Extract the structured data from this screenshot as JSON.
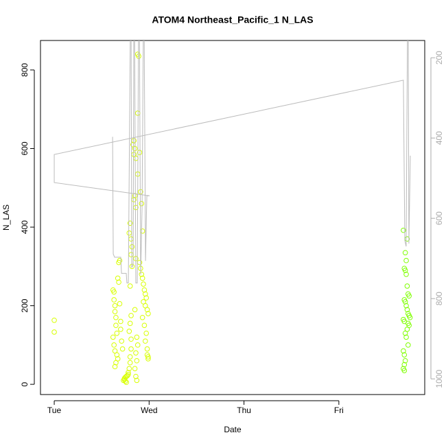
{
  "chart_data": {
    "type": "scatter",
    "title": "ATOM4 Northeast_Pacific_1 N_LAS",
    "x_label": "Date",
    "y_label": "N_LAS",
    "xlim": [
      -0.145,
      3.905
    ],
    "xticks": [
      {
        "value": 0,
        "label": "Tue"
      },
      {
        "value": 1,
        "label": "Wed"
      },
      {
        "value": 2,
        "label": "Thu"
      },
      {
        "value": 3,
        "label": "Fri"
      }
    ],
    "ylim": [
      -26,
      875
    ],
    "yticks": [
      0,
      200,
      400,
      600,
      800
    ],
    "y2lim": [
      1039,
      157
    ],
    "y2ticks": [
      200,
      400,
      600,
      800,
      1000
    ],
    "series": [
      {
        "color": "#d8ff00",
        "x": [
          0,
          0,
          0.62,
          0.63,
          0.63,
          0.64,
          0.64,
          0.65,
          0.65,
          0.66,
          0.62,
          0.63,
          0.64,
          0.66,
          0.67,
          0.65,
          0.64,
          0.67,
          0.68,
          0.68,
          0.69,
          0.69,
          0.7,
          0.7,
          0.71,
          0.72,
          0.73,
          0.74,
          0.74,
          0.75,
          0.76,
          0.77,
          0.78,
          0.75,
          0.76,
          0.78,
          0.79,
          0.8,
          0.8,
          0.81,
          0.81,
          0.79,
          0.8,
          0.81,
          0.8,
          0.79,
          0.81,
          0.82,
          0.81,
          0.8,
          0.82,
          0.84,
          0.83,
          0.85,
          0.84,
          0.86,
          0.85,
          0.84,
          0.86,
          0.88,
          0.89,
          0.88,
          0.88,
          0.86,
          0.85,
          0.87,
          0.88,
          0.86,
          0.87,
          0.85,
          0.86,
          0.87,
          0.92,
          0.93,
          0.94,
          0.95,
          0.96,
          0.97,
          0.94,
          0.96,
          0.98,
          0.99,
          0.93,
          0.95,
          0.97,
          0.96,
          0.98,
          0.99,
          0.91,
          0.92,
          0.93,
          0.9,
          0.9,
          0.91,
          0.99,
          0.98
        ],
        "values": [
          163,
          133,
          240,
          235,
          215,
          200,
          185,
          170,
          150,
          130,
          120,
          100,
          85,
          75,
          65,
          55,
          45,
          270,
          260,
          310,
          315,
          205,
          160,
          140,
          110,
          90,
          10,
          12,
          15,
          18,
          20,
          22,
          25,
          8,
          5,
          30,
          40,
          55,
          70,
          90,
          115,
          135,
          155,
          175,
          410,
          385,
          370,
          350,
          330,
          250,
          300,
          620,
          610,
          600,
          585,
          575,
          480,
          470,
          450,
          840,
          835,
          690,
          535,
          320,
          190,
          120,
          100,
          80,
          60,
          40,
          20,
          10,
          280,
          270,
          255,
          240,
          230,
          220,
          210,
          200,
          190,
          180,
          170,
          150,
          130,
          110,
          90,
          70,
          490,
          460,
          390,
          310,
          590,
          295,
          65,
          75
        ]
      },
      {
        "color": "#7fff00",
        "x": [
          3.68,
          3.69,
          3.7,
          3.71,
          3.72,
          3.7,
          3.71,
          3.72,
          3.73,
          3.74,
          3.69,
          3.7,
          3.71,
          3.72,
          3.73,
          3.74,
          3.75,
          3.68,
          3.69,
          3.73,
          3.74,
          3.72,
          3.7,
          3.71,
          3.73,
          3.68,
          3.69,
          3.7,
          3.69,
          3.68,
          3.69
        ],
        "values": [
          392,
          295,
          290,
          280,
          370,
          335,
          315,
          250,
          230,
          225,
          215,
          210,
          200,
          190,
          180,
          175,
          170,
          165,
          160,
          155,
          150,
          140,
          130,
          120,
          100,
          85,
          75,
          60,
          50,
          40,
          35
        ]
      },
      {
        "color": "#bbbbbb",
        "axis": "y2",
        "line": true,
        "x": [
          0.615,
          0.622,
          0.636,
          0.701,
          0.709,
          0.759,
          0.766,
          0.781,
          0.803,
          0.81,
          0.817,
          0.832,
          0.839,
          0.846,
          0.86,
          0.875,
          0.889,
          0.897,
          0.911,
          0.926,
          0.94,
          0.947,
          0.962,
          0.976,
          1.005,
          0,
          0,
          3.68,
          3.695,
          3.709,
          3.724,
          3.731,
          3.738,
          3.753
        ],
        "values": [
          397,
          689,
          697,
          697,
          737,
          737,
          761,
          761,
          100,
          100,
          723,
          715,
          100,
          100,
          761,
          761,
          100,
          100,
          740,
          569,
          100,
          100,
          706,
          544,
          544,
          511,
          441,
          256,
          655,
          670,
          100,
          100,
          663,
          444
        ]
      }
    ]
  }
}
